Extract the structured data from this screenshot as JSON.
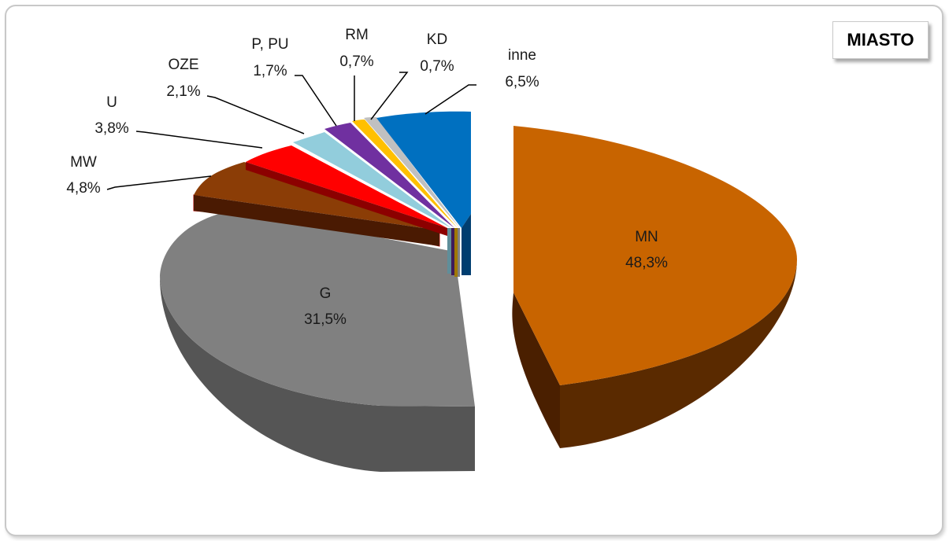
{
  "chart_data": {
    "type": "pie",
    "title": "MIASTO",
    "slices": [
      {
        "name": "MN",
        "value": 48.3,
        "label": "48,3%",
        "color": "#C86400",
        "side": "#5A2A00"
      },
      {
        "name": "G",
        "value": 31.5,
        "label": "31,5%",
        "color": "#7F7F7F",
        "side": "#4A4A4A"
      },
      {
        "name": "MW",
        "value": 4.8,
        "label": "4,8%",
        "color": "#8B3D06",
        "side": "#4A1A02"
      },
      {
        "name": "U",
        "value": 3.8,
        "label": "3,8%",
        "color": "#FF0000",
        "side": "#8C0000"
      },
      {
        "name": "OZE",
        "value": 2.1,
        "label": "2,1%",
        "color": "#92CDDC",
        "side": "#5F8E9A"
      },
      {
        "name": "P, PU",
        "value": 1.7,
        "label": "1,7%",
        "color": "#7030A0",
        "side": "#3E1A5A"
      },
      {
        "name": "RM",
        "value": 0.7,
        "label": "0,7%",
        "color": "#C0C0C0",
        "side": "#808080"
      },
      {
        "name": "KD",
        "value": 0.7,
        "label": "0,7%",
        "color": "#FFC000",
        "side": "#A07800"
      },
      {
        "name": "inne",
        "value": 6.5,
        "label": "6,5%",
        "color": "#0070C0",
        "side": "#003E70"
      }
    ]
  }
}
